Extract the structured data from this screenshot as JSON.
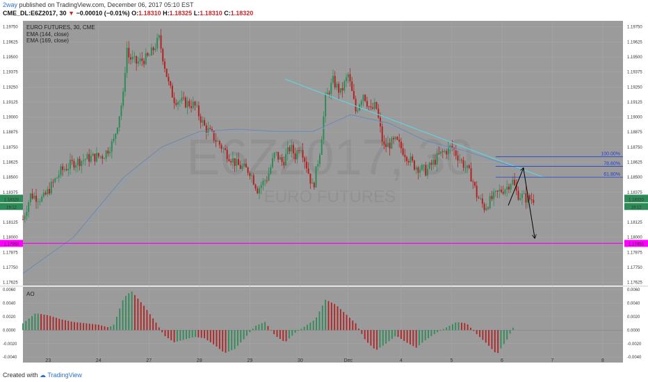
{
  "header": {
    "user": "2way",
    "published": "published on TradingView.com, December 06, 2017 05:10 EST",
    "symbol_line": "CME_DL:E6Z2017, 30",
    "change_arrow": "▼",
    "change": "−0.00010 (−0.01%)",
    "o_label": "O:",
    "o_val": "1.18310",
    "h_label": "H:",
    "h_val": "1.18325",
    "l_label": "L:",
    "l_val": "1.18310",
    "c_label": "C:",
    "c_val": "1.18320"
  },
  "legend": {
    "title": "EURO FUTURES, 30, CME",
    "ema1": "EMA (144, close)",
    "ema2": "EMA (169, close)",
    "ao_label": "AO"
  },
  "watermark": {
    "symbol": "E6Z2017, 30",
    "name": "EURO FUTURES"
  },
  "price_tags": {
    "current": "1.18320",
    "countdown": "19:12",
    "support": "1.17950"
  },
  "footer": {
    "created_with": "Created with",
    "brand": "TradingView"
  },
  "colors": {
    "background": "#9b9b9b",
    "up": "#2e8b57",
    "down": "#b22222",
    "ema": "#6f86a6",
    "trendline": "#5fd3e0",
    "support": "#ff00ff",
    "fib": "#1f3fd0",
    "current_tag": "#2e8b57"
  },
  "chart_data": [
    {
      "type": "candlestick",
      "title": "EURO FUTURES, 30, CME",
      "y_ticks": [
        "1.19750",
        "1.19625",
        "1.19500",
        "1.19375",
        "1.19250",
        "1.19125",
        "1.19000",
        "1.18875",
        "1.18750",
        "1.18625",
        "1.18500",
        "1.18375",
        "1.18250",
        "1.18125",
        "1.18000",
        "1.17875",
        "1.17750",
        "1.17625"
      ],
      "ylim": [
        1.176,
        1.198
      ],
      "x_ticks": [
        "23",
        "24",
        "27",
        "28",
        "29",
        "30",
        "Dec",
        "4",
        "5",
        "6",
        "7",
        "8"
      ],
      "x_tick_values": [
        1,
        3,
        5,
        7,
        9,
        11,
        12.9,
        15,
        17,
        19,
        21,
        23
      ],
      "xlim": [
        0,
        23.8
      ],
      "close_path": {
        "x": [
          0,
          0.3,
          0.8,
          1.5,
          2.0,
          2.6,
          3.2,
          3.6,
          4.0,
          4.1,
          4.2,
          4.5,
          5.0,
          5.4,
          5.6,
          5.8,
          6.0,
          6.4,
          6.8,
          7.2,
          7.5,
          8.0,
          8.5,
          9.0,
          9.3,
          9.7,
          10.0,
          10.3,
          10.6,
          10.8,
          11.0,
          11.3,
          11.5,
          11.8,
          12.0,
          12.3,
          12.6,
          12.9,
          13.2,
          13.5,
          13.8,
          14.0,
          14.3,
          14.8,
          15.5,
          16.0,
          16.5,
          17.0,
          17.5,
          17.8,
          18.0,
          18.3,
          18.6,
          18.9,
          19.2,
          19.4,
          19.6,
          20.0,
          20.3
        ],
        "y": [
          1.1815,
          1.1835,
          1.1832,
          1.1855,
          1.1862,
          1.1866,
          1.1868,
          1.188,
          1.192,
          1.196,
          1.195,
          1.1945,
          1.195,
          1.1965,
          1.1945,
          1.1925,
          1.1915,
          1.1912,
          1.191,
          1.1892,
          1.1885,
          1.1872,
          1.186,
          1.1855,
          1.184,
          1.185,
          1.187,
          1.1862,
          1.1875,
          1.1868,
          1.1878,
          1.1856,
          1.184,
          1.1875,
          1.1915,
          1.193,
          1.192,
          1.1935,
          1.1905,
          1.192,
          1.1905,
          1.191,
          1.1875,
          1.188,
          1.186,
          1.1855,
          1.1868,
          1.1875,
          1.186,
          1.185,
          1.1835,
          1.1825,
          1.1832,
          1.1838,
          1.1842,
          1.1848,
          1.1836,
          1.1832,
          1.1832
        ]
      },
      "ema_144": {
        "x": [
          0,
          2,
          4,
          5.5,
          7,
          8.5,
          10,
          11.5,
          13,
          14.5,
          16,
          17.5,
          19,
          20
        ],
        "y": [
          1.177,
          1.18,
          1.185,
          1.1875,
          1.1888,
          1.189,
          1.1888,
          1.1888,
          1.1902,
          1.1895,
          1.188,
          1.1872,
          1.1862,
          1.1855
        ]
      },
      "ema_169": {
        "x": [
          0,
          2,
          4,
          5.5,
          7,
          8.5,
          10,
          11.5,
          13,
          14.5,
          16,
          17.5,
          19,
          20
        ],
        "y": [
          1.1768,
          1.1797,
          1.1847,
          1.1872,
          1.1886,
          1.1889,
          1.1887,
          1.1887,
          1.19,
          1.1894,
          1.1879,
          1.1871,
          1.1861,
          1.1854
        ]
      },
      "trendline": {
        "x": [
          10.4,
          20.7
        ],
        "y": [
          1.19315,
          1.18495
        ]
      },
      "support_level": 1.1795,
      "fib_levels": [
        {
          "label": "100.00%",
          "value": 1.1867
        },
        {
          "label": "78.60%",
          "value": 1.1859
        },
        {
          "label": "61.80%",
          "value": 1.185
        }
      ],
      "fib_x_start": 18.75,
      "projection": {
        "x": [
          19.25,
          19.85,
          20.3
        ],
        "y": [
          1.18265,
          1.18575,
          1.17995
        ]
      }
    },
    {
      "type": "bar",
      "title": "AO",
      "y_ticks": [
        "0.0060",
        "0.0040",
        "0.0020",
        "0.0000",
        "-0.0020",
        "-0.0040"
      ],
      "ylim": [
        -0.0048,
        0.0064
      ],
      "profile_x": [
        0,
        0.5,
        1.0,
        1.5,
        2.0,
        2.5,
        3.0,
        3.4,
        3.6,
        4.0,
        4.3,
        4.8,
        5.3,
        5.6,
        6.0,
        6.4,
        6.8,
        7.2,
        7.6,
        8.0,
        8.4,
        8.8,
        9.2,
        9.6,
        10.0,
        10.4,
        10.8,
        11.2,
        11.6,
        12.0,
        12.4,
        12.8,
        13.2,
        13.6,
        14.0,
        14.4,
        14.8,
        15.2,
        15.6,
        16.0,
        16.4,
        16.8,
        17.2,
        17.6,
        18.0,
        18.4,
        18.8,
        19.2,
        19.5
      ],
      "profile_y": [
        0.001,
        0.0025,
        0.0022,
        0.0016,
        0.0012,
        0.001,
        0.0008,
        0.0004,
        0.0008,
        0.0048,
        0.0058,
        0.0036,
        0.001,
        -0.0008,
        -0.0018,
        -0.0014,
        -0.001,
        -0.0012,
        -0.0022,
        -0.0034,
        -0.0028,
        -0.0012,
        0.0006,
        0.0012,
        -0.0008,
        -0.0018,
        -0.0004,
        0.0006,
        0.0016,
        0.0045,
        0.0038,
        0.0024,
        0.001,
        -0.0016,
        -0.003,
        -0.002,
        -0.0008,
        -0.0018,
        -0.0026,
        -0.0014,
        -0.0004,
        0.0004,
        0.0012,
        0.001,
        -0.0006,
        -0.002,
        -0.0036,
        -0.0014,
        0.0008
      ]
    }
  ]
}
